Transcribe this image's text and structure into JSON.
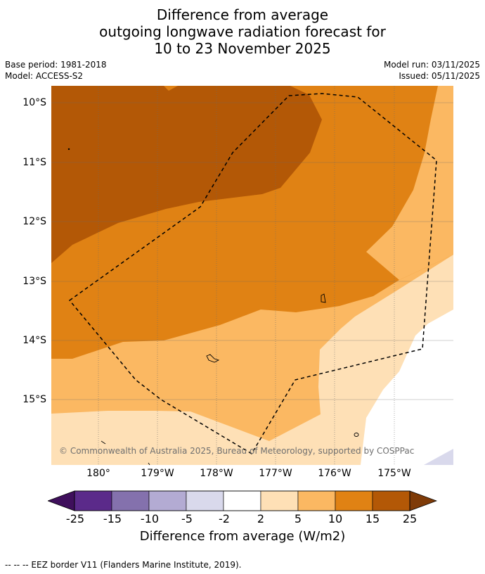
{
  "title": {
    "line1": "Difference from average",
    "line2": "outgoing longwave radiation forecast for",
    "line3": "10 to 23 November 2025"
  },
  "meta": {
    "base_period": "Base period: 1981-2018",
    "model": "Model: ACCESS-S2",
    "model_run": "Model run: 03/11/2025",
    "issued": "Issued: 05/11/2025"
  },
  "map": {
    "lat_labels": [
      "10°S",
      "11°S",
      "12°S",
      "13°S",
      "14°S",
      "15°S"
    ],
    "lon_labels": [
      "180°",
      "179°W",
      "178°W",
      "177°W",
      "176°W",
      "175°W"
    ],
    "copyright": "© Commonwealth of Australia 2025, Bureau of Meteorology, supported by COSPPac"
  },
  "colorbar": {
    "ticks": [
      "-25",
      "-15",
      "-10",
      "-5",
      "-2",
      "2",
      "5",
      "10",
      "15",
      "25"
    ],
    "colors": [
      "#5b2a8a",
      "#8471ad",
      "#b3abd3",
      "#d9d9ec",
      "#ffffff",
      "#fee0b6",
      "#fbb862",
      "#e08214",
      "#b35806"
    ],
    "under_color": "#3f0f5c",
    "over_color": "#7f3b08",
    "label": "Difference from average (W/m2)"
  },
  "footer": "--  --  -- EEZ border V11 (Flanders Marine Institute, 2019)."
}
